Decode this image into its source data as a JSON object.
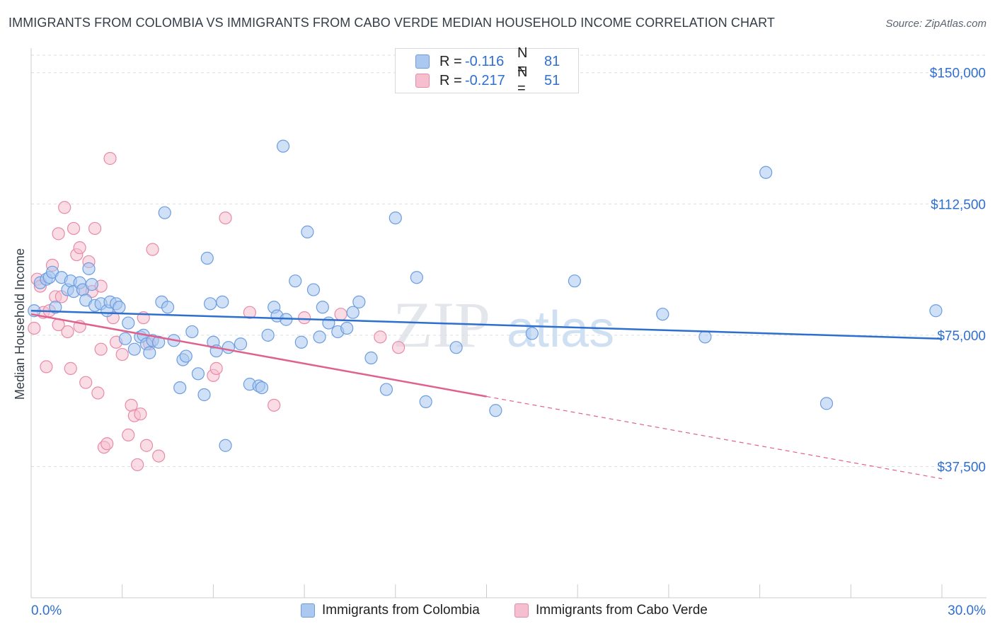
{
  "title": "IMMIGRANTS FROM COLOMBIA VS IMMIGRANTS FROM CABO VERDE MEDIAN HOUSEHOLD INCOME CORRELATION CHART",
  "source": "Source: ZipAtlas.com",
  "watermark": {
    "zip": "ZIP",
    "atlas": "atlas"
  },
  "legend": {
    "rows": [
      {
        "r_label": "R =",
        "r_value": "-0.116",
        "n_label": "N =",
        "n_value": "81"
      },
      {
        "r_label": "R =",
        "r_value": "-0.217",
        "n_label": "N =",
        "n_value": "51"
      }
    ]
  },
  "bottom_legend": [
    "Immigrants from Colombia",
    "Immigrants from Cabo Verde"
  ],
  "colors": {
    "colombia_fill": "#aac8f0",
    "colombia_stroke": "#6b9de0",
    "colombia_line": "#2d6fcf",
    "caboverde_fill": "#f6bfd0",
    "caboverde_stroke": "#e98aa8",
    "caboverde_line": "#e0608e",
    "axis_label": "#2f6fd0",
    "grid": "#d9dde2"
  },
  "chart_data": {
    "type": "scatter",
    "title": "IMMIGRANTS FROM COLOMBIA VS IMMIGRANTS FROM CABO VERDE MEDIAN HOUSEHOLD INCOME CORRELATION CHART",
    "xlabel": "",
    "ylabel": "Median Household Income",
    "xlim": [
      0,
      30
    ],
    "ylim": [
      0,
      155000
    ],
    "x_tick_labels": [
      "0.0%",
      "30.0%"
    ],
    "y_ticks": [
      37500,
      75000,
      112500,
      150000
    ],
    "y_tick_labels": [
      "$37,500",
      "$75,000",
      "$112,500",
      "$150,000"
    ],
    "grid": true,
    "legend_position": "top-center",
    "series": [
      {
        "name": "Immigrants from Colombia",
        "trend": {
          "x": [
            0,
            30
          ],
          "y": [
            82000,
            74000
          ],
          "style": "solid"
        },
        "points": [
          [
            0.1,
            82000
          ],
          [
            0.3,
            90000
          ],
          [
            0.5,
            91000
          ],
          [
            0.6,
            91500
          ],
          [
            0.7,
            93000
          ],
          [
            0.8,
            83000
          ],
          [
            1.0,
            91500
          ],
          [
            1.2,
            88000
          ],
          [
            1.3,
            90500
          ],
          [
            1.4,
            87500
          ],
          [
            1.6,
            90000
          ],
          [
            1.7,
            88000
          ],
          [
            1.8,
            85000
          ],
          [
            1.9,
            94000
          ],
          [
            2.0,
            89500
          ],
          [
            2.1,
            83500
          ],
          [
            2.3,
            84000
          ],
          [
            2.5,
            82000
          ],
          [
            2.6,
            84500
          ],
          [
            2.8,
            84000
          ],
          [
            2.9,
            83000
          ],
          [
            3.1,
            74000
          ],
          [
            3.2,
            78500
          ],
          [
            3.4,
            71000
          ],
          [
            3.6,
            74500
          ],
          [
            3.7,
            75000
          ],
          [
            3.8,
            72500
          ],
          [
            3.9,
            70000
          ],
          [
            4.0,
            73500
          ],
          [
            4.2,
            73000
          ],
          [
            4.3,
            84500
          ],
          [
            4.4,
            110000
          ],
          [
            4.5,
            83000
          ],
          [
            4.7,
            73500
          ],
          [
            4.9,
            60000
          ],
          [
            5.0,
            68000
          ],
          [
            5.1,
            69000
          ],
          [
            5.3,
            76000
          ],
          [
            5.5,
            64000
          ],
          [
            5.7,
            58000
          ],
          [
            5.8,
            97000
          ],
          [
            5.9,
            84000
          ],
          [
            6.0,
            73000
          ],
          [
            6.1,
            70500
          ],
          [
            6.3,
            84500
          ],
          [
            6.4,
            43500
          ],
          [
            6.5,
            71500
          ],
          [
            6.9,
            72500
          ],
          [
            7.2,
            61000
          ],
          [
            7.5,
            60500
          ],
          [
            7.6,
            60000
          ],
          [
            7.8,
            75000
          ],
          [
            8.0,
            83000
          ],
          [
            8.1,
            80500
          ],
          [
            8.3,
            129000
          ],
          [
            8.4,
            79500
          ],
          [
            8.7,
            90500
          ],
          [
            8.9,
            73000
          ],
          [
            9.1,
            104500
          ],
          [
            9.3,
            88000
          ],
          [
            9.5,
            74500
          ],
          [
            9.6,
            83000
          ],
          [
            9.8,
            78500
          ],
          [
            10.1,
            76000
          ],
          [
            10.4,
            77000
          ],
          [
            10.6,
            81500
          ],
          [
            10.8,
            84500
          ],
          [
            11.2,
            68500
          ],
          [
            11.7,
            59500
          ],
          [
            12.0,
            108500
          ],
          [
            12.7,
            91500
          ],
          [
            13.0,
            56000
          ],
          [
            14.0,
            71500
          ],
          [
            15.3,
            53500
          ],
          [
            16.5,
            75500
          ],
          [
            17.9,
            90500
          ],
          [
            20.8,
            81000
          ],
          [
            22.2,
            74500
          ],
          [
            24.2,
            121500
          ],
          [
            26.2,
            55500
          ],
          [
            29.8,
            82000
          ]
        ]
      },
      {
        "name": "Immigrants from Cabo Verde",
        "trend": {
          "x": [
            0,
            15
          ],
          "y": [
            81000,
            57500
          ],
          "style": "solid"
        },
        "trend_extension": {
          "x": [
            15,
            30
          ],
          "y": [
            57500,
            34000
          ],
          "style": "dashed"
        },
        "points": [
          [
            0.1,
            77000
          ],
          [
            0.2,
            91000
          ],
          [
            0.3,
            89000
          ],
          [
            0.4,
            81500
          ],
          [
            0.5,
            66000
          ],
          [
            0.6,
            82000
          ],
          [
            0.7,
            95000
          ],
          [
            0.8,
            86000
          ],
          [
            0.9,
            104000
          ],
          [
            1.0,
            86000
          ],
          [
            1.1,
            111500
          ],
          [
            1.2,
            76000
          ],
          [
            1.3,
            65500
          ],
          [
            1.4,
            105500
          ],
          [
            1.5,
            98000
          ],
          [
            1.6,
            100000
          ],
          [
            1.7,
            88000
          ],
          [
            1.8,
            61500
          ],
          [
            1.9,
            96000
          ],
          [
            2.0,
            87500
          ],
          [
            2.1,
            105500
          ],
          [
            2.2,
            58500
          ],
          [
            2.3,
            71000
          ],
          [
            2.4,
            43000
          ],
          [
            2.5,
            44000
          ],
          [
            2.6,
            125500
          ],
          [
            2.7,
            80000
          ],
          [
            2.8,
            73000
          ],
          [
            3.0,
            69500
          ],
          [
            3.2,
            46500
          ],
          [
            3.3,
            55000
          ],
          [
            3.4,
            52000
          ],
          [
            3.5,
            38000
          ],
          [
            3.6,
            52500
          ],
          [
            3.8,
            43500
          ],
          [
            3.9,
            72500
          ],
          [
            4.0,
            99500
          ],
          [
            4.2,
            40500
          ],
          [
            6.0,
            63500
          ],
          [
            6.1,
            65500
          ],
          [
            6.4,
            108500
          ],
          [
            7.2,
            81500
          ],
          [
            8.0,
            55000
          ],
          [
            9.0,
            80000
          ],
          [
            10.2,
            81000
          ],
          [
            11.5,
            74500
          ],
          [
            12.1,
            71500
          ],
          [
            3.7,
            80000
          ],
          [
            1.6,
            77500
          ],
          [
            0.9,
            78000
          ],
          [
            2.3,
            89000
          ]
        ]
      }
    ]
  }
}
